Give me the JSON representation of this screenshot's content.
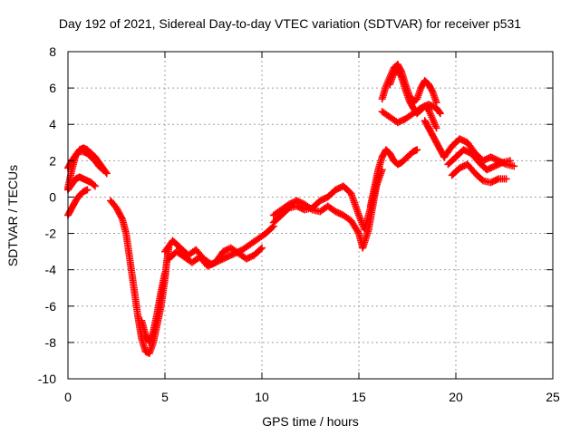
{
  "chart_data": {
    "type": "scatter",
    "title": "Day 192 of 2021, Sidereal Day-to-day VTEC variation (SDTVAR) for receiver p531",
    "xlabel": "GPS time / hours",
    "ylabel": "SDTVAR / TECUs",
    "xlim": [
      0,
      25
    ],
    "ylim": [
      -10,
      8
    ],
    "xticks": [
      0,
      5,
      10,
      15,
      20,
      25
    ],
    "yticks": [
      -10,
      -8,
      -6,
      -4,
      -2,
      0,
      2,
      4,
      6,
      8
    ],
    "grid": true,
    "marker": "+",
    "color": "#ff0000",
    "series": [
      {
        "x": [
          0.0,
          0.2,
          0.4,
          0.6,
          0.8,
          1.0,
          1.2,
          1.4,
          1.6,
          1.8,
          2.0
        ],
        "y": [
          0.5,
          1.5,
          2.3,
          2.6,
          2.7,
          2.6,
          2.4,
          2.2,
          1.9,
          1.6,
          1.3
        ]
      },
      {
        "x": [
          0.0,
          0.2,
          0.4,
          0.6,
          0.8,
          1.0,
          1.2,
          1.4,
          1.6,
          1.8
        ],
        "y": [
          1.6,
          2.0,
          2.3,
          2.5,
          2.5,
          2.4,
          2.2,
          2.0,
          1.7,
          1.5
        ]
      },
      {
        "x": [
          0.0,
          0.2,
          0.4,
          0.6,
          0.8,
          1.0,
          1.2,
          1.4
        ],
        "y": [
          0.4,
          0.7,
          1.0,
          1.1,
          1.0,
          0.9,
          0.8,
          0.6
        ]
      },
      {
        "x": [
          0.0,
          0.2,
          0.4,
          0.6,
          0.8,
          1.0
        ],
        "y": [
          -1.0,
          -0.6,
          -0.2,
          0.1,
          0.3,
          0.4
        ]
      },
      {
        "x": [
          2.2,
          2.5,
          2.8,
          3.0,
          3.2,
          3.4,
          3.6,
          3.8,
          4.0,
          4.2,
          4.4,
          4.6,
          4.8,
          5.0,
          5.1,
          5.2
        ],
        "y": [
          -0.2,
          -0.6,
          -1.2,
          -2.0,
          -3.5,
          -5.0,
          -6.5,
          -7.8,
          -8.5,
          -8.6,
          -8.0,
          -7.0,
          -6.0,
          -4.5,
          -3.5,
          -2.8
        ]
      },
      {
        "x": [
          3.8,
          4.0,
          4.2,
          4.4,
          4.6,
          4.8,
          5.0
        ],
        "y": [
          -6.8,
          -7.6,
          -8.0,
          -7.4,
          -6.4,
          -5.2,
          -4.2
        ]
      },
      {
        "x": [
          5.0,
          5.4,
          5.8,
          6.2,
          6.6,
          7.0,
          7.4,
          7.8,
          8.2,
          8.6,
          9.0,
          9.4,
          9.8,
          10.2,
          10.6
        ],
        "y": [
          -3.0,
          -2.4,
          -2.8,
          -3.2,
          -2.9,
          -3.4,
          -3.7,
          -3.5,
          -3.3,
          -3.1,
          -2.9,
          -2.6,
          -2.3,
          -2.0,
          -1.6
        ]
      },
      {
        "x": [
          5.2,
          5.6,
          6.0,
          6.4,
          6.8,
          7.2,
          7.6,
          8.0,
          8.4,
          8.8,
          9.2,
          9.6,
          10.0
        ],
        "y": [
          -3.4,
          -3.0,
          -3.3,
          -3.6,
          -3.3,
          -3.8,
          -3.6,
          -3.0,
          -2.8,
          -3.1,
          -3.4,
          -3.2,
          -2.8
        ]
      },
      {
        "x": [
          10.6,
          11.0,
          11.4,
          11.8,
          12.2,
          12.6,
          13.0,
          13.4,
          13.8,
          14.2,
          14.6,
          15.0,
          15.3,
          15.6,
          15.9,
          16.2
        ],
        "y": [
          -1.4,
          -1.0,
          -0.6,
          -0.5,
          -0.7,
          -0.6,
          -0.2,
          0.0,
          0.4,
          0.6,
          0.2,
          -1.0,
          -1.8,
          -0.6,
          0.6,
          1.5
        ]
      },
      {
        "x": [
          10.6,
          11.0,
          11.4,
          11.8,
          12.2,
          12.6,
          13.0,
          13.4,
          13.8,
          14.2,
          14.6,
          15.0,
          15.2,
          15.5,
          15.8,
          16.0
        ],
        "y": [
          -1.0,
          -0.7,
          -0.4,
          -0.2,
          -0.4,
          -0.7,
          -0.8,
          -0.5,
          -0.8,
          -1.0,
          -1.3,
          -2.0,
          -2.8,
          -1.8,
          0.0,
          1.2
        ]
      },
      {
        "x": [
          15.6,
          15.8,
          16.0,
          16.2,
          16.4,
          16.6,
          16.8,
          17.0,
          17.2,
          17.4,
          17.6,
          17.8,
          18.0
        ],
        "y": [
          -0.5,
          0.5,
          1.5,
          2.2,
          2.6,
          2.4,
          2.0,
          1.8,
          1.9,
          2.1,
          2.3,
          2.5,
          2.6
        ]
      },
      {
        "x": [
          16.2,
          16.4,
          16.6,
          16.8,
          17.0,
          17.2,
          17.4,
          17.6,
          17.8,
          18.0,
          18.2,
          18.4,
          18.6,
          18.8,
          19.0
        ],
        "y": [
          5.4,
          6.1,
          6.6,
          7.1,
          7.3,
          6.9,
          6.2,
          5.6,
          5.2,
          5.4,
          6.0,
          6.4,
          6.2,
          5.8,
          5.2
        ]
      },
      {
        "x": [
          16.6,
          16.8,
          17.0,
          17.2,
          17.4,
          17.6,
          17.8,
          18.0,
          18.2,
          18.4,
          18.6,
          18.8,
          19.0
        ],
        "y": [
          6.2,
          6.8,
          7.0,
          6.6,
          5.9,
          5.3,
          4.9,
          4.6,
          4.8,
          5.0,
          4.8,
          4.3,
          3.8
        ]
      },
      {
        "x": [
          16.2,
          16.6,
          17.0,
          17.4,
          17.8,
          18.2,
          18.6,
          19.0,
          19.2
        ],
        "y": [
          4.7,
          4.4,
          4.1,
          4.3,
          4.6,
          4.9,
          5.1,
          4.9,
          4.6
        ]
      },
      {
        "x": [
          18.4,
          18.6,
          18.8,
          19.0,
          19.2,
          19.4
        ],
        "y": [
          4.2,
          3.8,
          3.4,
          3.0,
          2.6,
          2.2
        ]
      },
      {
        "x": [
          19.4,
          19.8,
          20.2,
          20.6,
          21.0,
          21.4,
          21.8,
          22.2,
          22.6,
          23.0
        ],
        "y": [
          2.2,
          2.8,
          3.2,
          3.0,
          2.4,
          2.0,
          2.2,
          2.0,
          1.8,
          1.7
        ]
      },
      {
        "x": [
          19.6,
          20.0,
          20.4,
          20.8,
          21.2,
          21.6,
          22.0,
          22.4,
          22.8
        ],
        "y": [
          1.8,
          2.2,
          2.6,
          2.4,
          1.9,
          1.5,
          1.7,
          1.9,
          2.0
        ]
      },
      {
        "x": [
          19.8,
          20.2,
          20.6,
          21.0,
          21.4,
          21.8,
          22.2,
          22.6
        ],
        "y": [
          1.2,
          1.6,
          1.8,
          1.3,
          0.9,
          0.8,
          1.0,
          1.0
        ]
      }
    ]
  }
}
